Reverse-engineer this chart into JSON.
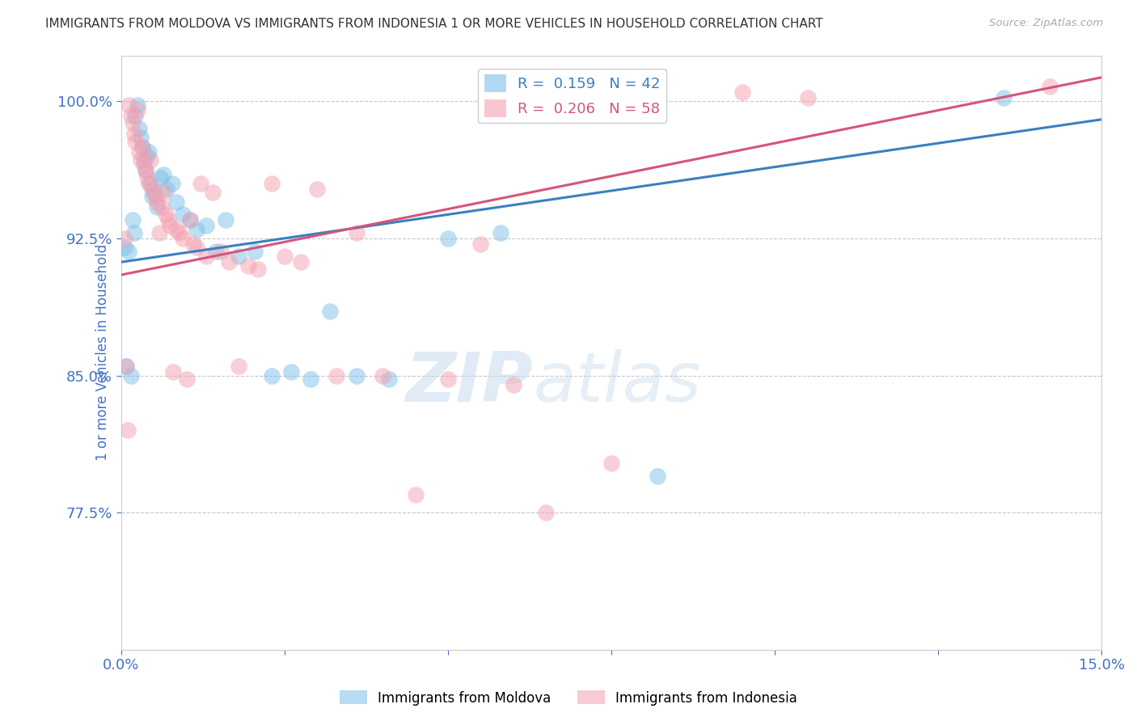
{
  "title": "IMMIGRANTS FROM MOLDOVA VS IMMIGRANTS FROM INDONESIA 1 OR MORE VEHICLES IN HOUSEHOLD CORRELATION CHART",
  "source": "Source: ZipAtlas.com",
  "ylabel": "1 or more Vehicles in Household",
  "xlim": [
    0.0,
    15.0
  ],
  "ylim": [
    70.0,
    102.5
  ],
  "yticks": [
    77.5,
    85.0,
    92.5,
    100.0
  ],
  "ytick_labels": [
    "77.5%",
    "85.0%",
    "92.5%",
    "100.0%"
  ],
  "xticks": [
    0.0,
    2.5,
    5.0,
    7.5,
    10.0,
    12.5,
    15.0
  ],
  "xtick_labels": [
    "0.0%",
    "",
    "",
    "",
    "",
    "",
    "15.0%"
  ],
  "moldova_color": "#7dbfe8",
  "indonesia_color": "#f4a0b0",
  "moldova_R": 0.159,
  "moldova_N": 42,
  "indonesia_R": 0.206,
  "indonesia_N": 58,
  "moldova_line_color": "#3a7fc1",
  "indonesia_line_color": "#d4557a",
  "background_color": "#ffffff",
  "grid_color": "#c8c8c8",
  "title_color": "#333333",
  "axis_color": "#4472c4",
  "watermark_zip": "ZIP",
  "watermark_atlas": "atlas",
  "moldova_line_intercept": 91.2,
  "moldova_line_slope": 0.52,
  "indonesia_line_intercept": 90.5,
  "indonesia_line_slope": 0.72,
  "moldova_x": [
    0.05,
    0.08,
    0.12,
    0.15,
    0.18,
    0.2,
    0.22,
    0.25,
    0.28,
    0.3,
    0.32,
    0.35,
    0.38,
    0.4,
    0.42,
    0.45,
    0.48,
    0.5,
    0.55,
    0.6,
    0.65,
    0.7,
    0.78,
    0.85,
    0.95,
    1.05,
    1.15,
    1.3,
    1.45,
    1.6,
    1.8,
    2.05,
    2.3,
    2.6,
    2.9,
    3.2,
    3.6,
    4.1,
    5.0,
    5.8,
    8.2,
    13.5
  ],
  "moldova_y": [
    92.0,
    85.5,
    91.8,
    85.0,
    93.5,
    92.8,
    99.2,
    99.8,
    98.5,
    98.0,
    97.5,
    96.8,
    96.2,
    97.0,
    97.2,
    95.5,
    94.8,
    95.0,
    94.2,
    95.8,
    96.0,
    95.2,
    95.5,
    94.5,
    93.8,
    93.5,
    93.0,
    93.2,
    91.8,
    93.5,
    91.5,
    91.8,
    85.0,
    85.2,
    84.8,
    88.5,
    85.0,
    84.8,
    92.5,
    92.8,
    79.5,
    100.2
  ],
  "indonesia_x": [
    0.05,
    0.08,
    0.1,
    0.12,
    0.15,
    0.18,
    0.2,
    0.22,
    0.25,
    0.28,
    0.3,
    0.32,
    0.35,
    0.38,
    0.4,
    0.42,
    0.45,
    0.48,
    0.52,
    0.55,
    0.58,
    0.62,
    0.65,
    0.68,
    0.72,
    0.75,
    0.8,
    0.85,
    0.9,
    0.95,
    1.0,
    1.05,
    1.1,
    1.15,
    1.22,
    1.3,
    1.4,
    1.52,
    1.65,
    1.8,
    1.95,
    2.1,
    2.3,
    2.5,
    2.75,
    3.0,
    3.3,
    3.6,
    4.0,
    4.5,
    5.0,
    5.5,
    6.0,
    6.5,
    7.5,
    9.5,
    10.5,
    14.2
  ],
  "indonesia_y": [
    92.5,
    85.5,
    82.0,
    99.8,
    99.2,
    98.8,
    98.2,
    97.8,
    99.5,
    97.2,
    96.8,
    97.5,
    96.5,
    96.2,
    95.8,
    95.5,
    96.8,
    95.2,
    94.8,
    94.5,
    92.8,
    94.2,
    95.0,
    93.8,
    93.5,
    93.2,
    85.2,
    93.0,
    92.8,
    92.5,
    84.8,
    93.5,
    92.2,
    92.0,
    95.5,
    91.5,
    95.0,
    91.8,
    91.2,
    85.5,
    91.0,
    90.8,
    95.5,
    91.5,
    91.2,
    95.2,
    85.0,
    92.8,
    85.0,
    78.5,
    84.8,
    92.2,
    84.5,
    77.5,
    80.2,
    100.5,
    100.2,
    100.8
  ]
}
